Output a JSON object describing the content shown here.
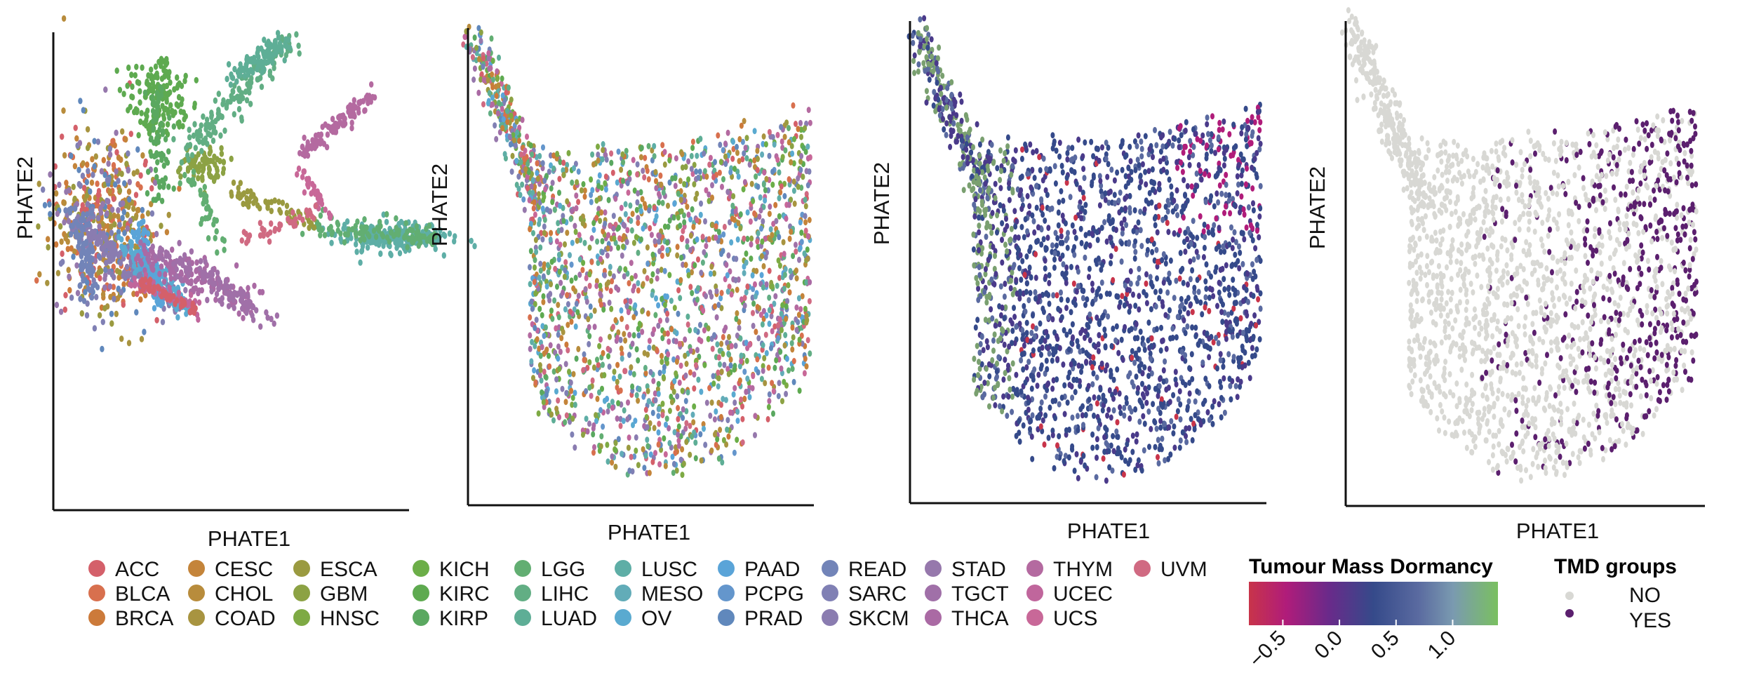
{
  "chart_data": [
    {
      "type": "scatter",
      "xlabel": "PHATE1",
      "ylabel": "PHATE2",
      "color_by": "cancer type",
      "description_values": "PHATE embedding colored by TCGA cancer type; points form branching trajectories per type"
    },
    {
      "type": "scatter",
      "xlabel": "PHATE1",
      "ylabel": "PHATE2",
      "color_by": "cancer type",
      "description_values": "Merged PHATE embedding, U-shaped cloud mixing all cancer types"
    },
    {
      "type": "scatter",
      "xlabel": "PHATE1",
      "ylabel": "PHATE2",
      "color_by": "Tumour Mass Dormancy score",
      "colorbar": {
        "title": "Tumour Mass Dormancy",
        "ticks": [
          "−0.5",
          "0.0",
          "0.5",
          "1.0"
        ],
        "range": [
          -0.8,
          1.4
        ],
        "colors": [
          "#c8344a",
          "#b01c7a",
          "#6a2a8a",
          "#354a8a",
          "#5a6aa0",
          "#7a9ab0",
          "#8ac070",
          "#7ac060"
        ]
      }
    },
    {
      "type": "scatter",
      "xlabel": "PHATE1",
      "ylabel": "PHATE2",
      "color_by": "TMD groups",
      "groups": [
        {
          "name": "NO",
          "color": "#d8d8d4"
        },
        {
          "name": "YES",
          "color": "#5b1f6e"
        }
      ]
    }
  ],
  "legend": {
    "cancer_types": [
      {
        "label": "ACC",
        "color": "#d4606a"
      },
      {
        "label": "BLCA",
        "color": "#d8704e"
      },
      {
        "label": "BRCA",
        "color": "#cc7a3a"
      },
      {
        "label": "CESC",
        "color": "#c4843a"
      },
      {
        "label": "CHOL",
        "color": "#b88c3c"
      },
      {
        "label": "COAD",
        "color": "#a89440"
      },
      {
        "label": "ESCA",
        "color": "#9a9a40"
      },
      {
        "label": "GBM",
        "color": "#8ca244"
      },
      {
        "label": "HNSC",
        "color": "#7eaa44"
      },
      {
        "label": "KICH",
        "color": "#6cae48"
      },
      {
        "label": "KIRC",
        "color": "#5eaa50"
      },
      {
        "label": "KIRP",
        "color": "#5aa860"
      },
      {
        "label": "LGG",
        "color": "#62ae72"
      },
      {
        "label": "LIHC",
        "color": "#62ae84"
      },
      {
        "label": "LUAD",
        "color": "#5eae96"
      },
      {
        "label": "LUSC",
        "color": "#5eaea6"
      },
      {
        "label": "MESO",
        "color": "#62acb8"
      },
      {
        "label": "OV",
        "color": "#5aaad0"
      },
      {
        "label": "PAAD",
        "color": "#5aa4d8"
      },
      {
        "label": "PCPG",
        "color": "#6496cc"
      },
      {
        "label": "PRAD",
        "color": "#6088bc"
      },
      {
        "label": "READ",
        "color": "#7284b8"
      },
      {
        "label": "SARC",
        "color": "#8080b4"
      },
      {
        "label": "SKCM",
        "color": "#8a7cb0"
      },
      {
        "label": "STAD",
        "color": "#9678ac"
      },
      {
        "label": "TGCT",
        "color": "#a070a8"
      },
      {
        "label": "THCA",
        "color": "#aa6aa4"
      },
      {
        "label": "THYM",
        "color": "#b46aa0"
      },
      {
        "label": "UCEC",
        "color": "#c0669c"
      },
      {
        "label": "UCS",
        "color": "#c86898"
      },
      {
        "label": "UVM",
        "color": "#d06a82"
      }
    ],
    "tmd_title": "Tumour Mass Dormancy",
    "groups_title": "TMD groups",
    "group_no": "NO",
    "group_yes": "YES"
  },
  "axes": {
    "p1": {
      "x": "PHATE1",
      "y": "PHATE2"
    },
    "p2": {
      "x": "PHATE1",
      "y": "PHATE2"
    },
    "p3": {
      "x": "PHATE1",
      "y": "PHATE2"
    },
    "p4": {
      "x": "PHATE1",
      "y": "PHATE2"
    }
  }
}
